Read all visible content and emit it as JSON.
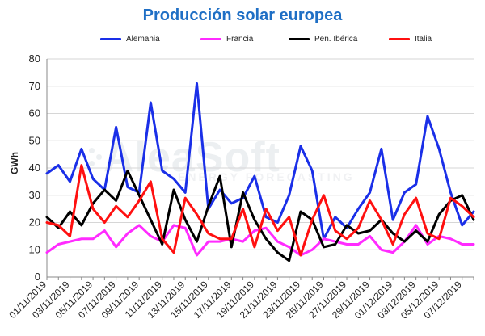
{
  "chart_data": {
    "type": "line",
    "title": "Producción solar europea",
    "ylabel": "GWh",
    "xlabel": "",
    "ylim": [
      0,
      80
    ],
    "y_ticks": [
      0,
      10,
      20,
      30,
      40,
      50,
      60,
      70,
      80
    ],
    "grid": "horizontal",
    "legend_position": "top",
    "x_tick_labels": [
      "01/11/2019",
      "03/11/2019",
      "05/11/2019",
      "07/11/2019",
      "09/11/2019",
      "11/11/2019",
      "13/11/2019",
      "15/11/2019",
      "17/11/2019",
      "19/11/2019",
      "21/11/2019",
      "23/11/2019",
      "25/11/2019",
      "27/11/2019",
      "29/11/2019",
      "01/12/2019",
      "03/12/2019",
      "05/12/2019",
      "07/12/2019"
    ],
    "x": [
      "01/11/2019",
      "02/11/2019",
      "03/11/2019",
      "04/11/2019",
      "05/11/2019",
      "06/11/2019",
      "07/11/2019",
      "08/11/2019",
      "09/11/2019",
      "10/11/2019",
      "11/11/2019",
      "12/11/2019",
      "13/11/2019",
      "14/11/2019",
      "15/11/2019",
      "16/11/2019",
      "17/11/2019",
      "18/11/2019",
      "19/11/2019",
      "20/11/2019",
      "21/11/2019",
      "22/11/2019",
      "23/11/2019",
      "24/11/2019",
      "25/11/2019",
      "26/11/2019",
      "27/11/2019",
      "28/11/2019",
      "29/11/2019",
      "30/11/2019",
      "01/12/2019",
      "02/12/2019",
      "03/12/2019",
      "04/12/2019",
      "05/12/2019",
      "06/12/2019",
      "07/12/2019",
      "08/12/2019"
    ],
    "series": [
      {
        "name": "Alemania",
        "color": "#1a2fe8",
        "values": [
          38,
          41,
          35,
          47,
          36,
          32,
          55,
          33,
          31,
          64,
          39,
          36,
          31,
          71,
          25,
          32,
          27,
          29,
          37,
          22,
          20,
          30,
          48,
          39,
          14,
          22,
          18,
          25,
          31,
          47,
          21,
          31,
          34,
          59,
          47,
          31,
          19,
          24
        ]
      },
      {
        "name": "Francia",
        "color": "#ff2bff",
        "values": [
          9,
          12,
          13,
          14,
          14,
          17,
          11,
          16,
          19,
          15,
          13,
          19,
          18,
          8,
          13,
          13,
          14,
          13,
          17,
          18,
          13,
          11,
          8,
          10,
          14,
          13,
          12,
          12,
          15,
          10,
          9,
          13,
          19,
          12,
          15,
          14,
          12,
          12
        ]
      },
      {
        "name": "Pen. Ibérica",
        "color": "#000000",
        "values": [
          22,
          18,
          24,
          19,
          27,
          32,
          28,
          39,
          30,
          21,
          12,
          32,
          21,
          13,
          26,
          37,
          11,
          31,
          21,
          14,
          9,
          6,
          24,
          21,
          11,
          12,
          19,
          16,
          17,
          21,
          16,
          13,
          17,
          13,
          23,
          28,
          30,
          21
        ]
      },
      {
        "name": "Italia",
        "color": "#ff1010",
        "values": [
          20,
          19,
          15,
          41,
          25,
          20,
          26,
          22,
          28,
          35,
          14,
          9,
          29,
          23,
          16,
          14,
          14,
          25,
          11,
          25,
          17,
          22,
          8,
          21,
          30,
          17,
          14,
          18,
          28,
          21,
          12,
          23,
          29,
          16,
          14,
          29,
          26,
          22
        ]
      }
    ]
  },
  "watermark": {
    "main": "AleaSoft",
    "sub": "ENERGY FORECASTING"
  }
}
